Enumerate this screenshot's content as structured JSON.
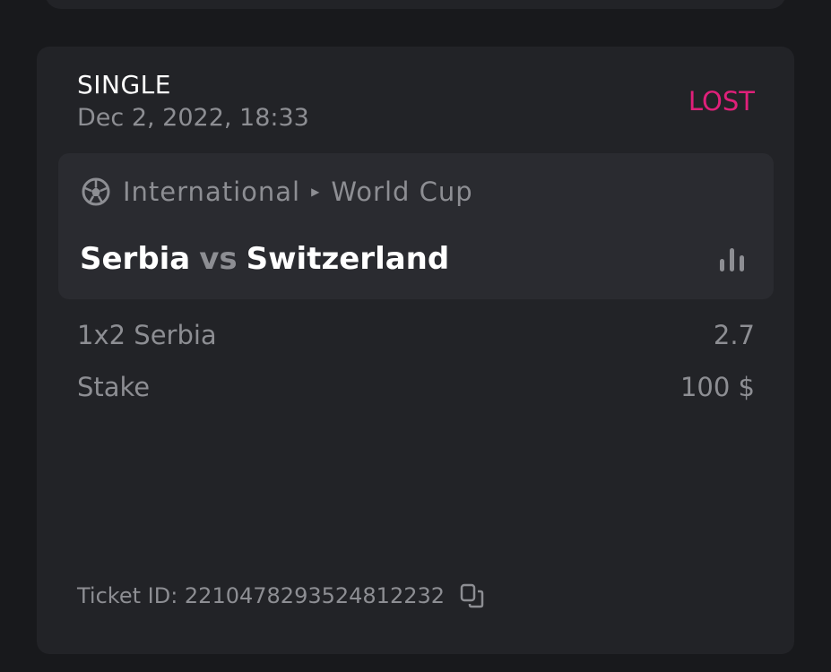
{
  "bet": {
    "type": "SINGLE",
    "date": "Dec 2, 2022, 18:33",
    "status": "LOST",
    "status_color": "#e0207a",
    "event": {
      "sport_icon": "soccer-ball-icon",
      "country": "International",
      "league": "World Cup",
      "home": "Serbia",
      "vs": "vs",
      "away": "Switzerland",
      "stats_icon": "bar-chart-icon"
    },
    "market": {
      "label": "1x2 Serbia",
      "odds": "2.7"
    },
    "stake": {
      "label": "Stake",
      "value": "100 $"
    },
    "ticket_id": "Ticket ID: 2210478293524812232",
    "copy_icon": "copy-icon"
  }
}
